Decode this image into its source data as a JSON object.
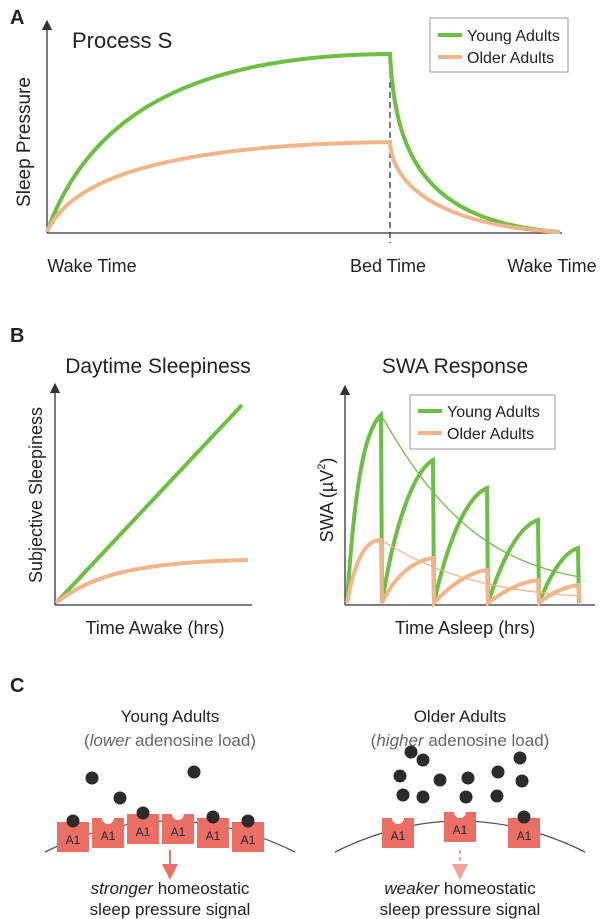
{
  "panel_a": {
    "label": "A",
    "title": "Process S",
    "y_label": "Sleep Pressure",
    "x_labels": [
      "Wake Time",
      "Bed Time",
      "Wake Time"
    ],
    "legend": [
      "Young Adults",
      "Older Adults"
    ]
  },
  "panel_b": {
    "label": "B",
    "left": {
      "title": "Daytime Sleepiness",
      "y_label": "Subjective Sleepiness",
      "x_label": "Time Awake (hrs)"
    },
    "right": {
      "title": "SWA Response",
      "y_label": [
        "SWA (µV",
        "2",
        ")"
      ],
      "x_label": "Time Asleep (hrs)",
      "legend": [
        "Young Adults",
        "Older Adults"
      ]
    }
  },
  "panel_c": {
    "label": "C",
    "young": {
      "title": "Young Adults",
      "subtitle": [
        "(",
        "lower",
        " adenosine load)"
      ],
      "receptors": [
        "A1",
        "A1",
        "A1",
        "A1",
        "A1",
        "A1"
      ],
      "signal": [
        "stronger",
        " homeostatic"
      ],
      "signal_line2": "sleep pressure signal"
    },
    "older": {
      "title": "Older Adults",
      "subtitle": [
        "(",
        "higher",
        " adenosine load)"
      ],
      "receptors": [
        "A1",
        "A1",
        "A1"
      ],
      "signal": [
        "weaker",
        " homeostatic"
      ],
      "signal_line2": "sleep pressure signal"
    }
  }
}
